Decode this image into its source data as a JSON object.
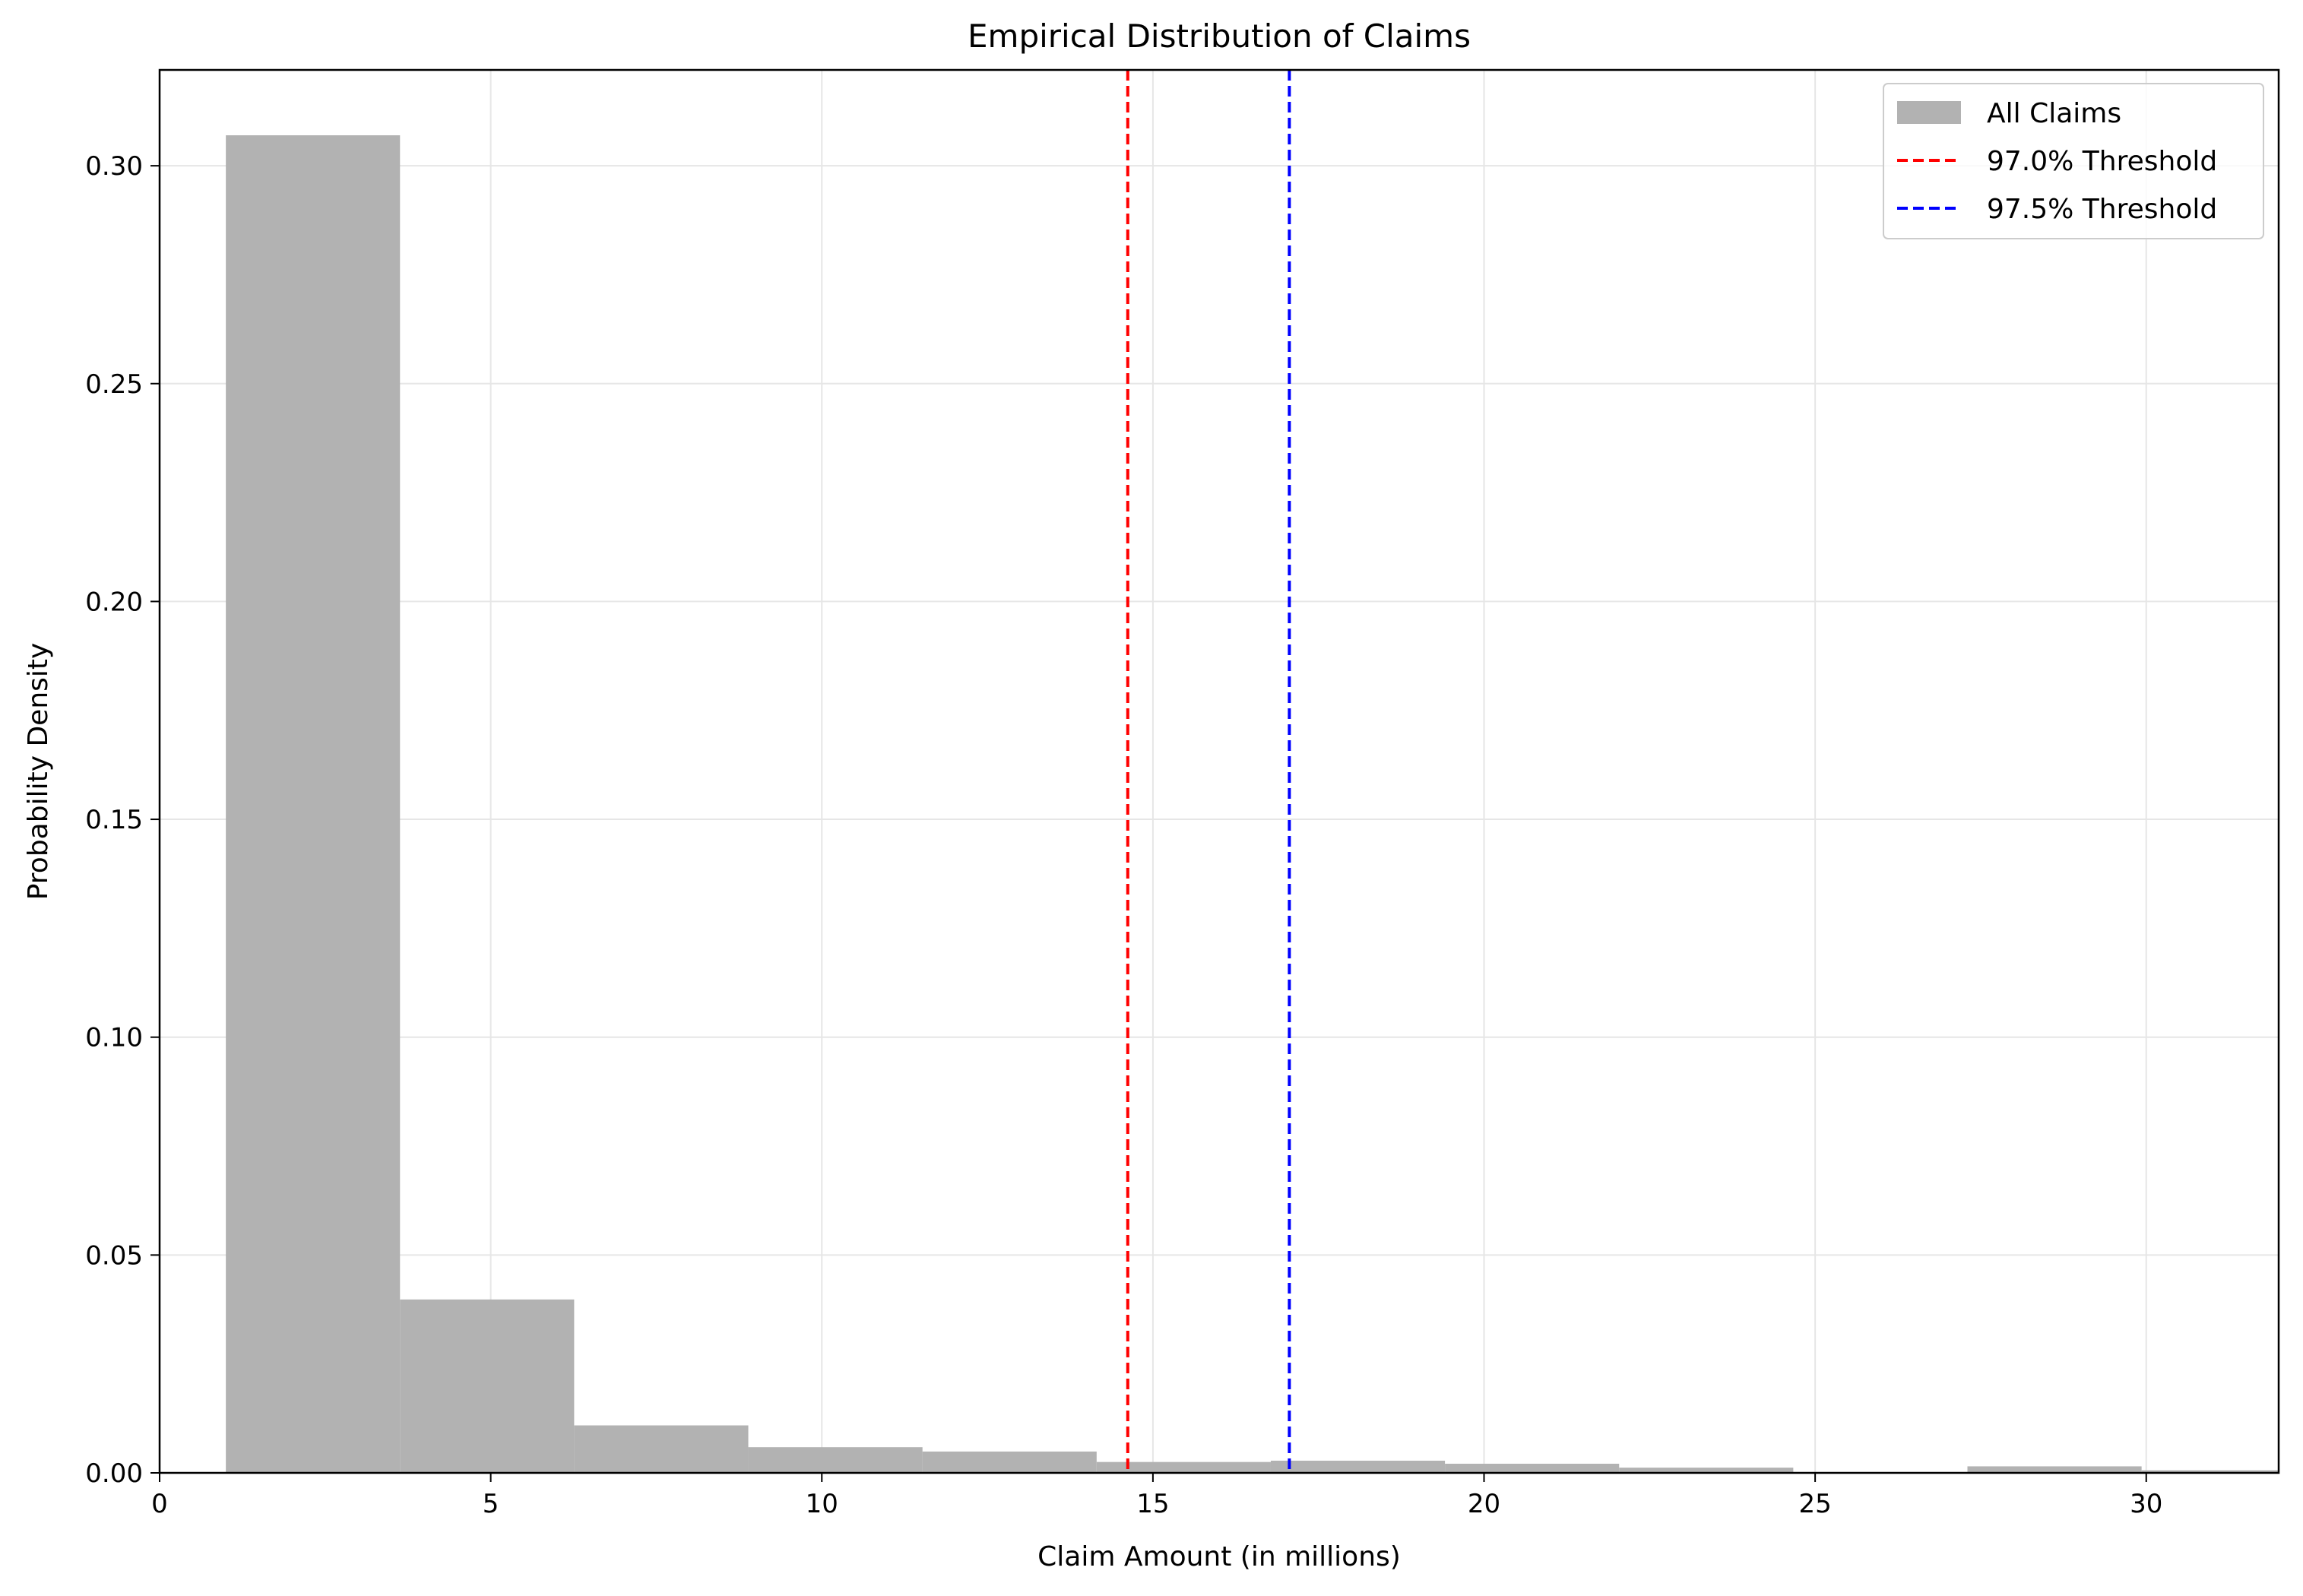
{
  "chart_data": {
    "type": "bar",
    "title": "Empirical Distribution of Claims",
    "xlabel": "Claim Amount (in millions)",
    "ylabel": "Probability Density",
    "xlim": [
      0,
      32
    ],
    "ylim": [
      0,
      0.322
    ],
    "grid": true,
    "legend_position": "top-right",
    "x_ticks": [
      {
        "value": 0,
        "label": "0"
      },
      {
        "value": 5,
        "label": "5"
      },
      {
        "value": 10,
        "label": "10"
      },
      {
        "value": 15,
        "label": "15"
      },
      {
        "value": 20,
        "label": "20"
      },
      {
        "value": 25,
        "label": "25"
      },
      {
        "value": 30,
        "label": "30"
      }
    ],
    "y_ticks": [
      {
        "value": 0.0,
        "label": "0.00"
      },
      {
        "value": 0.05,
        "label": "0.05"
      },
      {
        "value": 0.1,
        "label": "0.10"
      },
      {
        "value": 0.15,
        "label": "0.15"
      },
      {
        "value": 0.2,
        "label": "0.20"
      },
      {
        "value": 0.25,
        "label": "0.25"
      },
      {
        "value": 0.3,
        "label": "0.30"
      }
    ],
    "histogram": {
      "name": "All Claims",
      "color": "#b2b2b2",
      "bins": [
        {
          "x0": 1.0,
          "x1": 3.63,
          "density": 0.307
        },
        {
          "x0": 3.63,
          "x1": 6.26,
          "density": 0.0398
        },
        {
          "x0": 6.26,
          "x1": 8.89,
          "density": 0.0109
        },
        {
          "x0": 8.89,
          "x1": 11.52,
          "density": 0.0059
        },
        {
          "x0": 11.52,
          "x1": 14.15,
          "density": 0.0049
        },
        {
          "x0": 14.15,
          "x1": 16.78,
          "density": 0.0025
        },
        {
          "x0": 16.78,
          "x1": 19.41,
          "density": 0.0028
        },
        {
          "x0": 19.41,
          "x1": 22.04,
          "density": 0.0021
        },
        {
          "x0": 22.04,
          "x1": 24.67,
          "density": 0.0012
        },
        {
          "x0": 24.67,
          "x1": 27.3,
          "density": 0.0
        },
        {
          "x0": 27.3,
          "x1": 29.93,
          "density": 0.0015
        },
        {
          "x0": 29.93,
          "x1": 32.56,
          "density": 0.0006
        }
      ]
    },
    "thresholds": [
      {
        "name": "97.0% Threshold",
        "x": 14.62,
        "color": "#ff0000"
      },
      {
        "name": "97.5% Threshold",
        "x": 17.06,
        "color": "#0000ff"
      }
    ]
  }
}
